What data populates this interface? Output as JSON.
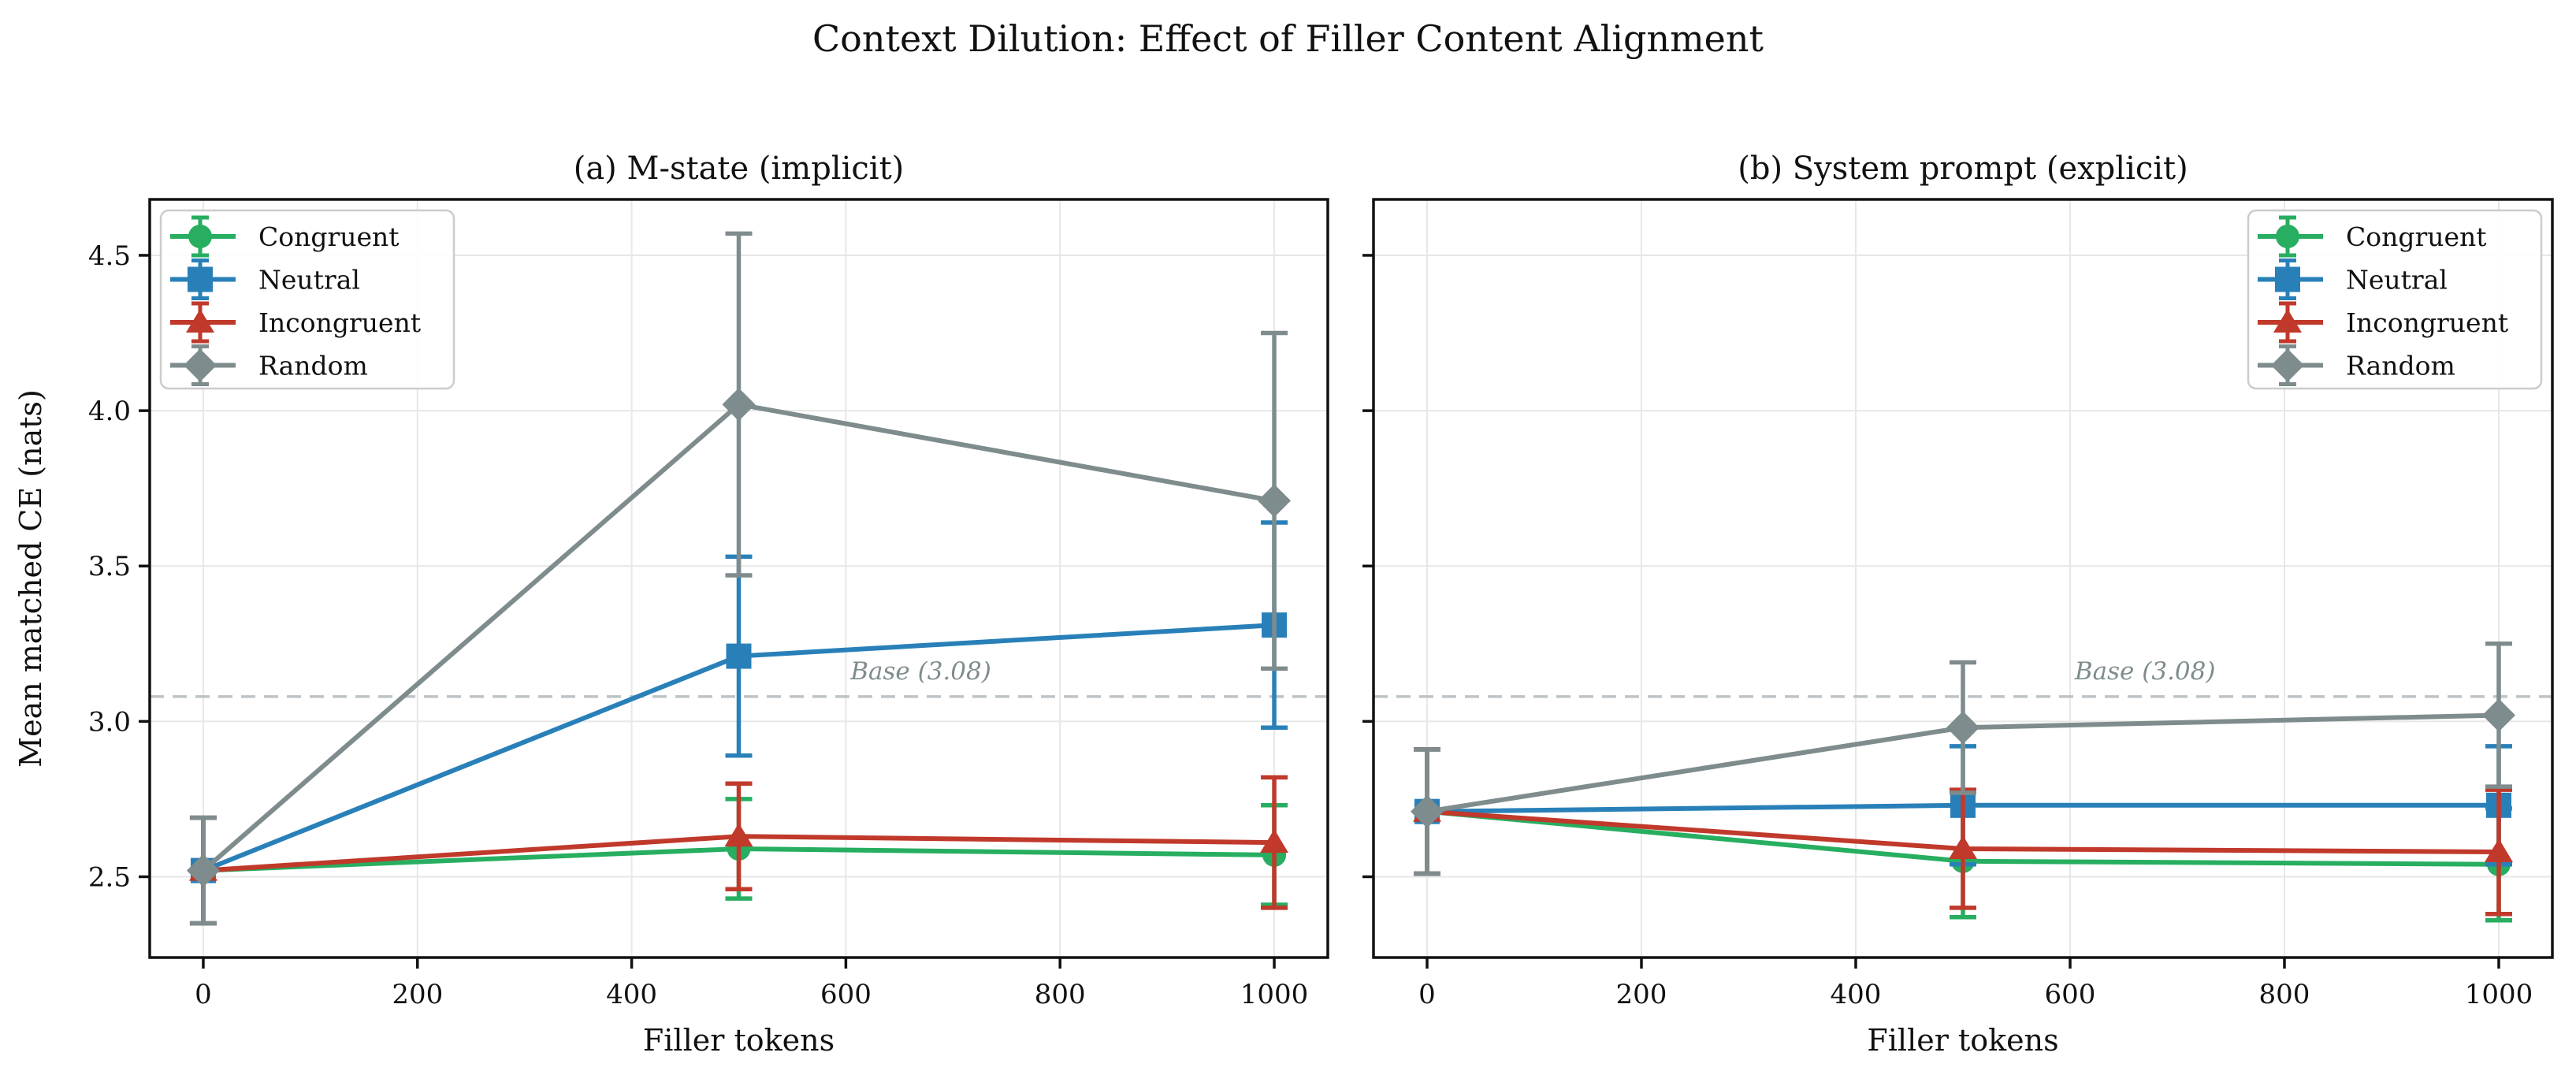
{
  "figure": {
    "title": "Context Dilution: Effect of Filler Content Alignment"
  },
  "chart_data": {
    "type": "line",
    "title": "Context Dilution: Effect of Filler Content Alignment",
    "xlabel": "Filler tokens",
    "ylabel": "Mean matched CE (nats)",
    "x": [
      0,
      500,
      1000
    ],
    "xticks": [
      0,
      200,
      400,
      600,
      800,
      1000
    ],
    "yticks": [
      2.5,
      3.0,
      3.5,
      4.0,
      4.5
    ],
    "xlim": [
      -50,
      1050
    ],
    "ylim": [
      2.24,
      4.68
    ],
    "grid": true,
    "legend_entries": [
      "Congruent",
      "Neutral",
      "Incongruent",
      "Random"
    ],
    "baseline": {
      "value": 3.08,
      "label": "Base (3.08)",
      "label_x": 670
    },
    "colors": {
      "congruent": "#27ae60",
      "neutral": "#2980b9",
      "incongruent": "#c0392b",
      "random": "#7f8c8d",
      "grid": "#e7e7e7",
      "baseline": "#bdc3c7",
      "baseline_label": "#7f8c8d",
      "text": "#111111",
      "spine": "#111111",
      "legend_border": "#cccccc"
    },
    "panels": [
      {
        "id": "a",
        "title": "(a) M-state (implicit)",
        "legend_position": "upper-left",
        "show_y_tick_labels": true,
        "series": [
          {
            "name": "Congruent",
            "marker": "circle",
            "color": "#27ae60",
            "values": [
              2.52,
              2.59,
              2.57
            ],
            "errors": [
              0.17,
              0.16,
              0.16
            ]
          },
          {
            "name": "Neutral",
            "marker": "square",
            "color": "#2980b9",
            "values": [
              2.52,
              3.21,
              3.31
            ],
            "errors": [
              0.17,
              0.32,
              0.33
            ]
          },
          {
            "name": "Incongruent",
            "marker": "triangle",
            "color": "#c0392b",
            "values": [
              2.52,
              2.63,
              2.61
            ],
            "errors": [
              0.17,
              0.17,
              0.21
            ]
          },
          {
            "name": "Random",
            "marker": "diamond",
            "color": "#7f8c8d",
            "values": [
              2.52,
              4.02,
              3.71
            ],
            "errors": [
              0.17,
              0.55,
              0.54
            ]
          }
        ]
      },
      {
        "id": "b",
        "title": "(b) System prompt (explicit)",
        "legend_position": "upper-right",
        "show_y_tick_labels": false,
        "series": [
          {
            "name": "Congruent",
            "marker": "circle",
            "color": "#27ae60",
            "values": [
              2.71,
              2.55,
              2.54
            ],
            "errors": [
              0.2,
              0.18,
              0.18
            ]
          },
          {
            "name": "Neutral",
            "marker": "square",
            "color": "#2980b9",
            "values": [
              2.71,
              2.73,
              2.73
            ],
            "errors": [
              0.2,
              0.19,
              0.19
            ]
          },
          {
            "name": "Incongruent",
            "marker": "triangle",
            "color": "#c0392b",
            "values": [
              2.71,
              2.59,
              2.58
            ],
            "errors": [
              0.2,
              0.19,
              0.2
            ]
          },
          {
            "name": "Random",
            "marker": "diamond",
            "color": "#7f8c8d",
            "values": [
              2.71,
              2.98,
              3.02
            ],
            "errors": [
              0.2,
              0.21,
              0.23
            ]
          }
        ]
      }
    ]
  }
}
